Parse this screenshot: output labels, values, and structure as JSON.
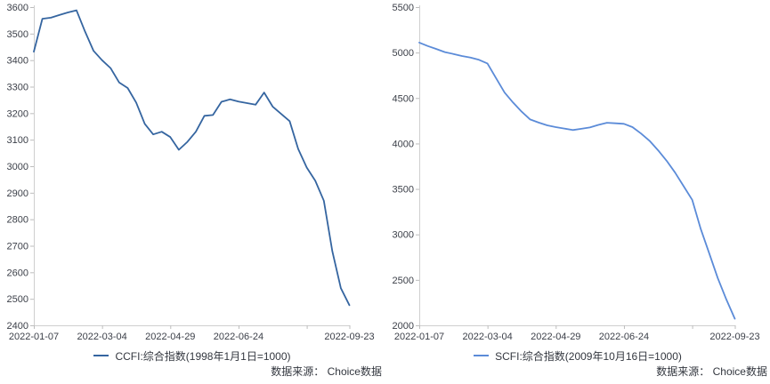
{
  "page": {
    "background_color": "#ffffff",
    "axis_color": "#cfcfcf",
    "tick_color": "#bdbdbd",
    "label_color": "#3b3f48"
  },
  "chart_data": [
    {
      "type": "line",
      "title": "",
      "xlabel": "",
      "ylabel": "",
      "grid": false,
      "legend_position": "bottom-center",
      "ylim": [
        2400,
        3600
      ],
      "y_tick_step": 100,
      "y_tick_labels": [
        "3600",
        "3500",
        "3400",
        "3300",
        "3200",
        "3100",
        "3000",
        "2900",
        "2800",
        "2700",
        "2600",
        "2500",
        "2400"
      ],
      "x_axis_tick_labels": [
        "2022-01-07",
        "2022-03-04",
        "2022-04-29",
        "2022-06-24",
        "2022-09-23"
      ],
      "x_axis_tick_indices": [
        0,
        8,
        16,
        24,
        37
      ],
      "x_axis_unlabeled_tick_indices": [
        32
      ],
      "x": [
        "2022-01-07",
        "2022-01-14",
        "2022-01-21",
        "2022-01-28",
        "2022-02-04",
        "2022-02-11",
        "2022-02-18",
        "2022-02-25",
        "2022-03-04",
        "2022-03-11",
        "2022-03-18",
        "2022-03-25",
        "2022-04-01",
        "2022-04-08",
        "2022-04-15",
        "2022-04-22",
        "2022-04-29",
        "2022-05-06",
        "2022-05-13",
        "2022-05-20",
        "2022-05-27",
        "2022-06-03",
        "2022-06-10",
        "2022-06-17",
        "2022-06-24",
        "2022-07-01",
        "2022-07-08",
        "2022-07-15",
        "2022-07-22",
        "2022-07-29",
        "2022-08-05",
        "2022-08-12",
        "2022-08-19",
        "2022-08-26",
        "2022-09-02",
        "2022-09-09",
        "2022-09-16",
        "2022-09-23"
      ],
      "series": [
        {
          "name": "CCFI:综合指数(1998年1月1日=1000)",
          "color": "#3565a0",
          "values": [
            3432,
            3556,
            3560,
            3570,
            3580,
            3588,
            3508,
            3435,
            3400,
            3370,
            3316,
            3295,
            3240,
            3160,
            3120,
            3130,
            3110,
            3062,
            3092,
            3130,
            3190,
            3193,
            3243,
            3252,
            3244,
            3238,
            3232,
            3278,
            3225,
            3197,
            3170,
            3065,
            2995,
            2945,
            2870,
            2680,
            2540,
            2476
          ]
        }
      ],
      "source_note": "数据来源： Choice数据"
    },
    {
      "type": "line",
      "title": "",
      "xlabel": "",
      "ylabel": "",
      "grid": false,
      "legend_position": "bottom-center",
      "ylim": [
        2000,
        5500
      ],
      "y_tick_step": 500,
      "y_tick_labels": [
        "5500",
        "5000",
        "4500",
        "4000",
        "3500",
        "3000",
        "2500",
        "2000"
      ],
      "x_axis_tick_labels": [
        "2022-01-07",
        "2022-03-04",
        "2022-04-29",
        "2022-06-24",
        "2022-09-23"
      ],
      "x_axis_tick_indices": [
        0,
        8,
        16,
        24,
        37
      ],
      "x_axis_unlabeled_tick_indices": [
        32
      ],
      "x": [
        "2022-01-07",
        "2022-01-14",
        "2022-01-21",
        "2022-01-28",
        "2022-02-04",
        "2022-02-11",
        "2022-02-18",
        "2022-02-25",
        "2022-03-04",
        "2022-03-11",
        "2022-03-18",
        "2022-03-25",
        "2022-04-01",
        "2022-04-08",
        "2022-04-15",
        "2022-04-22",
        "2022-04-29",
        "2022-05-06",
        "2022-05-13",
        "2022-05-20",
        "2022-05-27",
        "2022-06-03",
        "2022-06-10",
        "2022-06-17",
        "2022-06-24",
        "2022-07-01",
        "2022-07-08",
        "2022-07-15",
        "2022-07-22",
        "2022-07-29",
        "2022-08-05",
        "2022-08-12",
        "2022-08-19",
        "2022-08-26",
        "2022-09-02",
        "2022-09-09",
        "2022-09-16",
        "2022-09-23"
      ],
      "series": [
        {
          "name": "SCFI:综合指数(2009年10月16日=1000)",
          "color": "#5b8bd8",
          "values": [
            5110,
            5072,
            5040,
            5005,
            4985,
            4962,
            4945,
            4920,
            4880,
            4720,
            4560,
            4450,
            4350,
            4264,
            4230,
            4200,
            4180,
            4165,
            4148,
            4162,
            4176,
            4205,
            4228,
            4222,
            4216,
            4180,
            4110,
            4030,
            3925,
            3810,
            3680,
            3530,
            3380,
            3060,
            2790,
            2520,
            2285,
            2072
          ]
        }
      ],
      "source_note": "数据来源： Choice数据"
    }
  ]
}
